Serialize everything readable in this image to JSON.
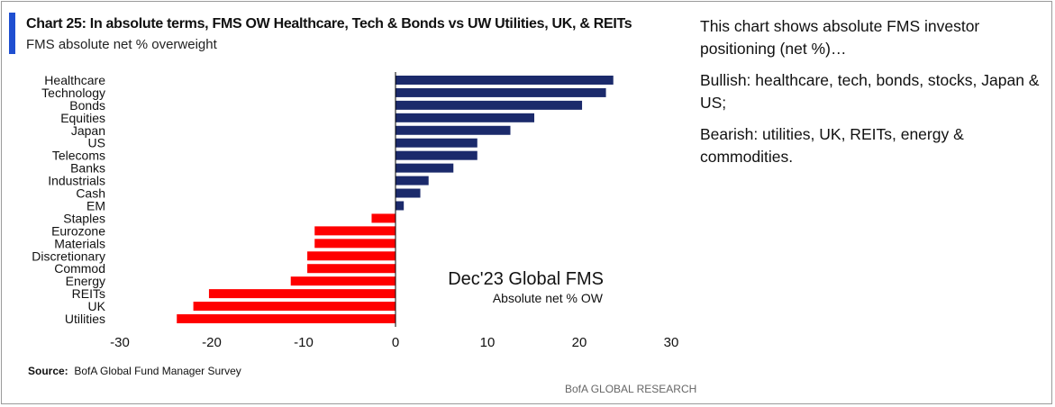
{
  "header": {
    "title": "Chart 25: In absolute terms, FMS OW Healthcare, Tech & Bonds vs UW Utilities, UK, & REITs",
    "subtitle": "FMS absolute net % overweight"
  },
  "annotation": {
    "title": "Dec'23 Global FMS",
    "subtitle": "Absolute net % OW"
  },
  "source": {
    "label": "Source:",
    "text": "BofA Global Fund Manager Survey"
  },
  "footer": {
    "brand": "BofA GLOBAL RESEARCH"
  },
  "commentary": {
    "p1": "This chart shows absolute FMS investor positioning (net %)…",
    "p2": "Bullish: healthcare, tech, bonds, stocks, Japan & US;",
    "p3": "Bearish: utilities, UK, REITs, energy & commodities."
  },
  "colors": {
    "accent": "#1f4fd1",
    "positive": "#1b2a6b",
    "negative": "#ff0000"
  },
  "chart_data": {
    "type": "bar",
    "orientation": "horizontal",
    "categories": [
      "Healthcare",
      "Technology",
      "Bonds",
      "Equities",
      "Japan",
      "US",
      "Telecoms",
      "Banks",
      "Industrials",
      "Cash",
      "EM",
      "Staples",
      "Eurozone",
      "Materials",
      "Discretionary",
      "Commod",
      "Energy",
      "REITs",
      "UK",
      "Utilities"
    ],
    "values": [
      23.7,
      22.9,
      20.3,
      15.1,
      12.5,
      8.9,
      8.9,
      6.3,
      3.6,
      2.7,
      0.9,
      -2.6,
      -8.8,
      -8.8,
      -9.6,
      -9.6,
      -11.4,
      -20.3,
      -22.0,
      -23.8
    ],
    "xticks": [
      -30,
      -20,
      -10,
      0,
      10,
      20,
      30
    ],
    "xlim": [
      -30,
      30
    ],
    "grid": false
  }
}
